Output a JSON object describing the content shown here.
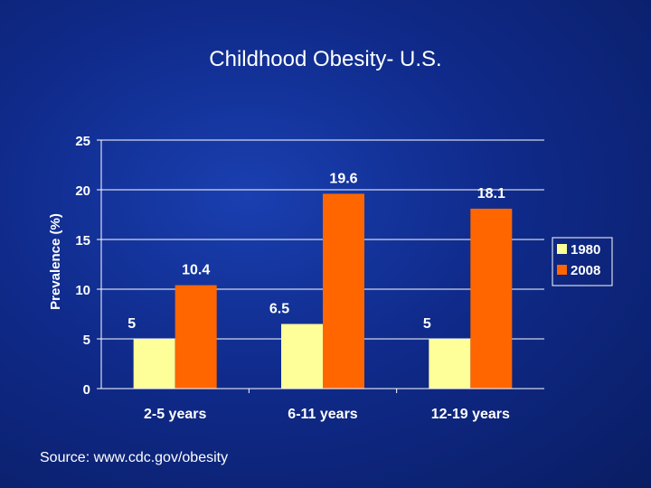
{
  "title": "Childhood Obesity- U.S.",
  "source": "Source: www.cdc.gov/obesity",
  "colors": {
    "1980": "#ffff99",
    "2008": "#ff6600",
    "background": "#0f2a8a"
  },
  "chart_data": {
    "type": "bar",
    "title": "Childhood Obesity- U.S.",
    "categories": [
      "2-5 years",
      "6-11 years",
      "12-19 years"
    ],
    "series": [
      {
        "name": "1980",
        "values": [
          5,
          6.5,
          5
        ],
        "labels": [
          "5",
          "6.5",
          "5"
        ],
        "color": "#ffff99"
      },
      {
        "name": "2008",
        "values": [
          10.4,
          19.6,
          18.1
        ],
        "labels": [
          "10.4",
          "19.6",
          "18.1"
        ],
        "color": "#ff6600"
      }
    ],
    "xlabel": "",
    "ylabel": "Prevalence (%)",
    "ylim": [
      0,
      25
    ],
    "yticks": [
      0,
      5,
      10,
      15,
      20,
      25
    ],
    "ytick_labels": [
      "0",
      "5",
      "10",
      "15",
      "20",
      "25"
    ],
    "grid": true,
    "legend": "right"
  }
}
